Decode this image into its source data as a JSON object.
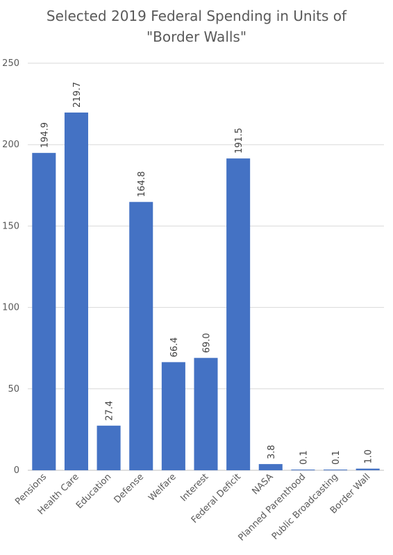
{
  "chart_data": {
    "type": "bar",
    "title_lines": [
      "Selected 2019 Federal Spending in Units of",
      "\"Border Walls\""
    ],
    "categories": [
      "Pensions",
      "Health Care",
      "Education",
      "Defense",
      "Welfare",
      "Interest",
      "Federal Deficit",
      "NASA",
      "Planned Parenthood",
      "Public Broadcasting",
      "Border Wall"
    ],
    "values": [
      194.9,
      219.7,
      27.4,
      164.8,
      66.4,
      69.0,
      191.5,
      3.8,
      0.1,
      0.1,
      1.0
    ],
    "data_labels": [
      "194.9",
      "219.7",
      "27.4",
      "164.8",
      "66.4",
      "69.0",
      "191.5",
      "3.8",
      "0.1",
      "0.1",
      "1.0"
    ],
    "y_ticks": [
      0,
      50,
      100,
      150,
      200,
      250
    ],
    "ylim": [
      0,
      250
    ],
    "xlabel": "",
    "ylabel": "",
    "grid": true,
    "legend": "none",
    "bar_color": "#4472c4"
  }
}
